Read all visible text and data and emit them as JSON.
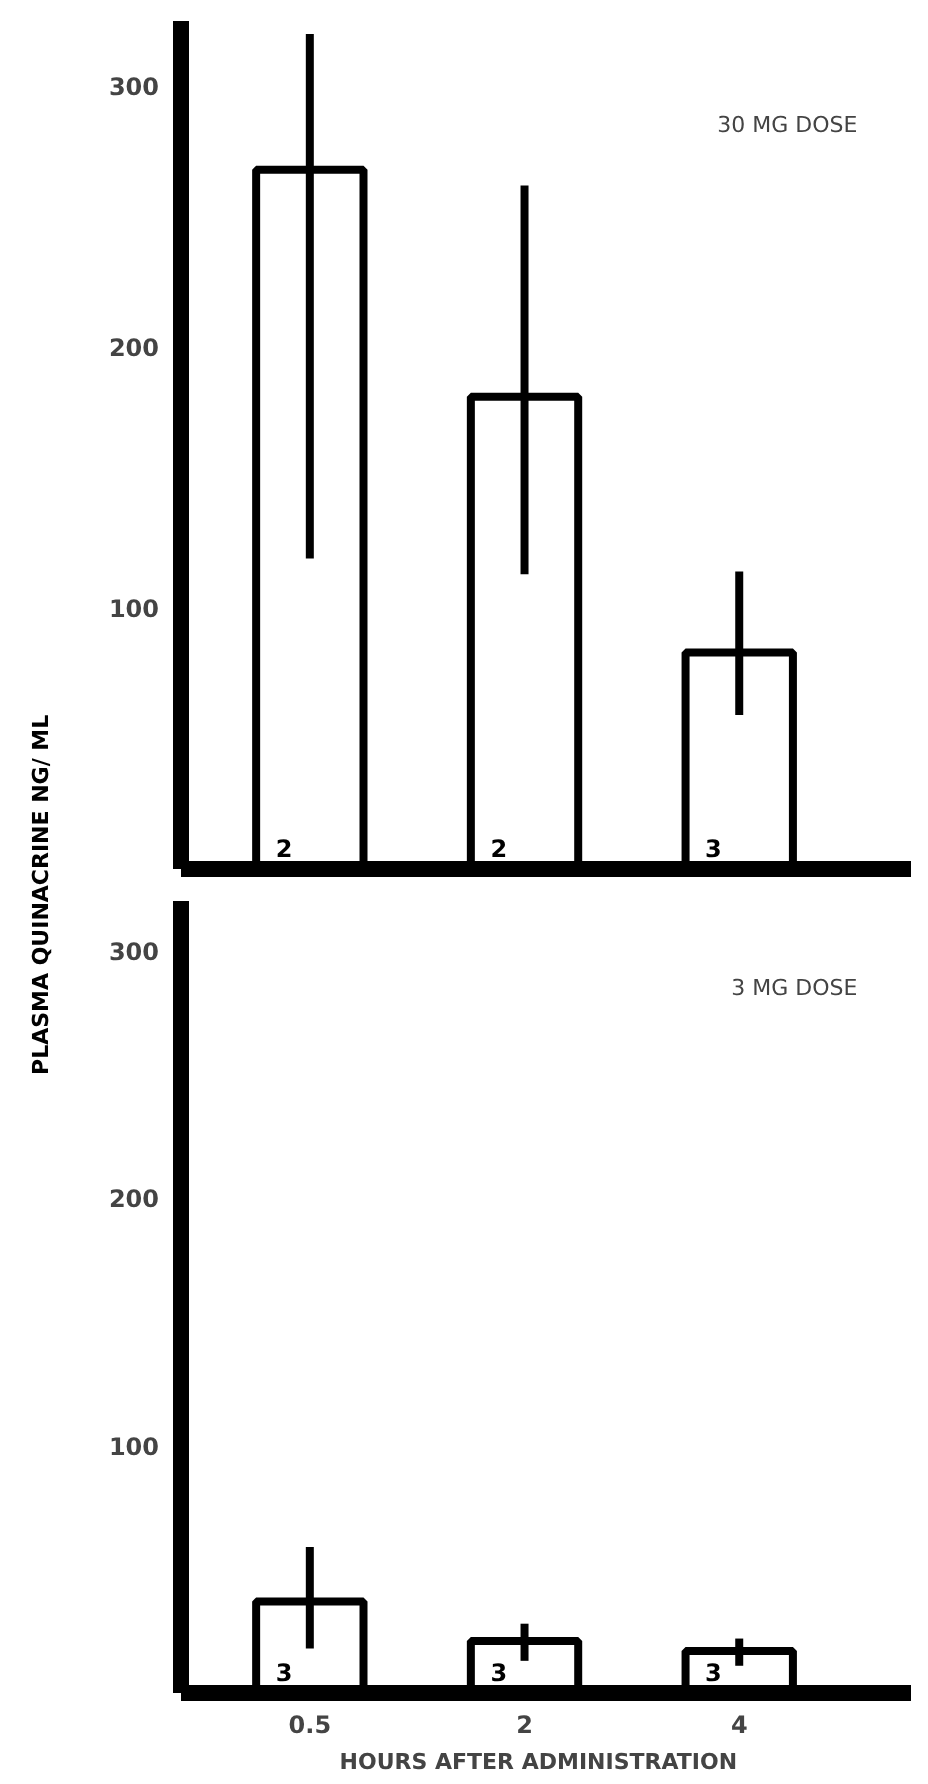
{
  "chart_data": [
    {
      "type": "bar",
      "title": "30 MG DOSE",
      "ylabel": "PLASMA QUINACRINE  NG/ ML",
      "categories": [
        null,
        null,
        null
      ],
      "values": [
        268,
        181,
        83
      ],
      "errors": [
        [
          119,
          320
        ],
        [
          113,
          262
        ],
        [
          59,
          114
        ]
      ],
      "color": "#ffffff",
      "ylim": [
        0,
        325
      ],
      "yticks": [
        100,
        200,
        300
      ],
      "tick_labels": "y",
      "grid": false,
      "annotations": [
        "2",
        "2",
        "3"
      ]
    },
    {
      "type": "bar",
      "title": "3 MG DOSE",
      "xlabel": "HOURS  AFTER  ADMINISTRATION",
      "categories": [
        "0.5",
        "2",
        "4"
      ],
      "values": [
        37,
        21,
        17
      ],
      "errors": [
        [
          18,
          59
        ],
        [
          13,
          28
        ],
        [
          11,
          22
        ]
      ],
      "color": "#ffffff",
      "ylim": [
        0,
        320
      ],
      "yticks": [
        100,
        200,
        300
      ],
      "grid": false,
      "annotations": [
        "3",
        "3",
        "3"
      ]
    }
  ]
}
